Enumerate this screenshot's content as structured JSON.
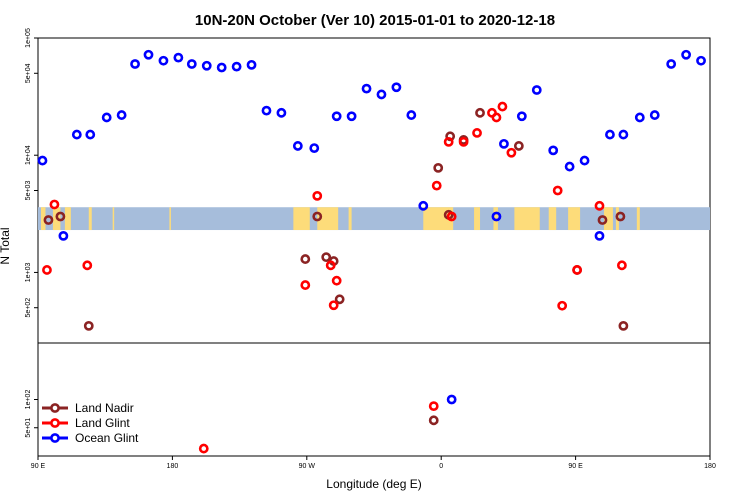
{
  "chart_data": {
    "type": "scatter",
    "title": "10N-20N October (Ver 10)   2015-01-01 to 2020-12-18",
    "xlabel": "Longitude (deg E)",
    "ylabel": "N Total",
    "x_ticks": [
      {
        "value": 90,
        "label": "90 E"
      },
      {
        "value": 180,
        "label": "180"
      },
      {
        "value": 270,
        "label": "90 W"
      },
      {
        "value": 360,
        "label": "0"
      },
      {
        "value": 450,
        "label": "90 E"
      },
      {
        "value": 540,
        "label": "180"
      }
    ],
    "upper_panel": {
      "y_scale": "log",
      "ylim": [
        250,
        100000
      ],
      "y_ticks": [
        {
          "value": 500,
          "label": "5e+02"
        },
        {
          "value": 1000,
          "label": "1e+03"
        },
        {
          "value": 5000,
          "label": "5e+03"
        },
        {
          "value": 10000,
          "label": "1e+04"
        },
        {
          "value": 50000,
          "label": "5e+04"
        },
        {
          "value": 100000,
          "label": "1e+05"
        }
      ],
      "land_mask_band": {
        "lat_range": "10N-20N",
        "ymin": 2300,
        "ymax": 3600
      }
    },
    "lower_panel": {
      "y_scale": "log",
      "ylim": [
        25,
        400
      ],
      "y_ticks": [
        {
          "value": 50,
          "label": "5e+01"
        },
        {
          "value": 100,
          "label": "1e+02"
        }
      ]
    },
    "series": [
      {
        "name": "Land Nadir",
        "color": "#8b2323",
        "upper": [
          [
            97,
            2800
          ],
          [
            105,
            3000
          ],
          [
            124,
            350
          ],
          [
            269,
            1300
          ],
          [
            277,
            3000
          ],
          [
            283,
            1350
          ],
          [
            288,
            1250
          ],
          [
            292,
            590
          ],
          [
            358,
            7800
          ],
          [
            365,
            3100
          ],
          [
            366,
            14500
          ],
          [
            375,
            13500
          ],
          [
            386,
            23000
          ],
          [
            412,
            12000
          ],
          [
            451,
            1050
          ],
          [
            468,
            2800
          ],
          [
            480,
            3000
          ],
          [
            482,
            350
          ]
        ],
        "lower": [
          [
            355,
            60
          ]
        ]
      },
      {
        "name": "Land Glint",
        "color": "#ff0000",
        "upper": [
          [
            96,
            1050
          ],
          [
            101,
            3800
          ],
          [
            123,
            1150
          ],
          [
            269,
            780
          ],
          [
            277,
            4500
          ],
          [
            288,
            525
          ],
          [
            286,
            1150
          ],
          [
            290,
            850
          ],
          [
            357,
            5500
          ],
          [
            367,
            3000
          ],
          [
            365,
            13000
          ],
          [
            375,
            13000
          ],
          [
            384,
            15500
          ],
          [
            394,
            23000
          ],
          [
            397,
            21000
          ],
          [
            401,
            26000
          ],
          [
            407,
            10500
          ],
          [
            438,
            5000
          ],
          [
            441,
            520
          ],
          [
            451,
            1050
          ],
          [
            466,
            3700
          ],
          [
            481,
            1150
          ]
        ],
        "lower": [
          [
            201,
            30
          ],
          [
            355,
            85
          ]
        ]
      },
      {
        "name": "Ocean Glint",
        "color": "#0000ff",
        "upper": [
          [
            93,
            9000
          ],
          [
            107,
            2050
          ],
          [
            116,
            15000
          ],
          [
            125,
            15000
          ],
          [
            136,
            21000
          ],
          [
            146,
            22000
          ],
          [
            155,
            60000
          ],
          [
            164,
            72000
          ],
          [
            174,
            64000
          ],
          [
            184,
            68000
          ],
          [
            193,
            60000
          ],
          [
            203,
            58000
          ],
          [
            213,
            56000
          ],
          [
            223,
            57000
          ],
          [
            233,
            59000
          ],
          [
            243,
            24000
          ],
          [
            253,
            23000
          ],
          [
            264,
            12000
          ],
          [
            275,
            11500
          ],
          [
            290,
            21500
          ],
          [
            300,
            21500
          ],
          [
            310,
            37000
          ],
          [
            320,
            33000
          ],
          [
            330,
            38000
          ],
          [
            340,
            22000
          ],
          [
            348,
            3700
          ],
          [
            397,
            3000
          ],
          [
            402,
            12500
          ],
          [
            414,
            21500
          ],
          [
            424,
            36000
          ],
          [
            435,
            11000
          ],
          [
            446,
            8000
          ],
          [
            456,
            9000
          ],
          [
            466,
            2050
          ],
          [
            473,
            15000
          ],
          [
            482,
            15000
          ],
          [
            493,
            21000
          ],
          [
            503,
            22000
          ],
          [
            514,
            60000
          ],
          [
            524,
            72000
          ],
          [
            534,
            64000
          ]
        ],
        "lower": [
          [
            367,
            100
          ]
        ]
      }
    ],
    "legend": {
      "position": "bottom-left",
      "entries": [
        "Land Nadir",
        "Land Glint",
        "Ocean Glint"
      ]
    }
  }
}
